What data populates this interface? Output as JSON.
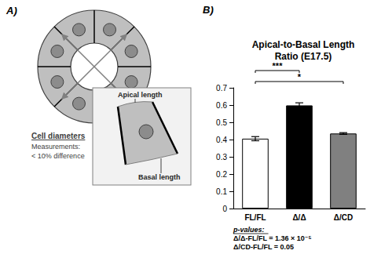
{
  "panel_a": {
    "letter": "A)",
    "note_title": "Cell diameters",
    "note_lines": [
      "Measurements:",
      "< 10% difference"
    ],
    "apical_label": "Apical length",
    "basal_label": "Basal length"
  },
  "chart_data": {
    "letter": "B)",
    "type": "bar",
    "title": "Apical-to-Basal Length Ratio (E17.5)",
    "categories": [
      "FL/FL",
      "Δ/Δ",
      "Δ/CD"
    ],
    "values": [
      0.405,
      0.598,
      0.435
    ],
    "errors": [
      0.012,
      0.015,
      0.005
    ],
    "colors": [
      "#ffffff",
      "#000000",
      "#808080"
    ],
    "ylim": [
      0,
      0.7
    ],
    "yticks": [
      0,
      0.1,
      0.2,
      0.3,
      0.4,
      0.5,
      0.6,
      0.7
    ],
    "grid": false,
    "significance": [
      {
        "from": "FL/FL",
        "to": "Δ/Δ",
        "label": "***"
      },
      {
        "from": "FL/FL",
        "to": "Δ/CD",
        "label": "*"
      }
    ],
    "annotation_title": "p-values:",
    "annotations": [
      "Δ/Δ-FL/FL = 1.36 × 10⁻⁵",
      "Δ/CD-FL/FL = 0.05"
    ]
  }
}
